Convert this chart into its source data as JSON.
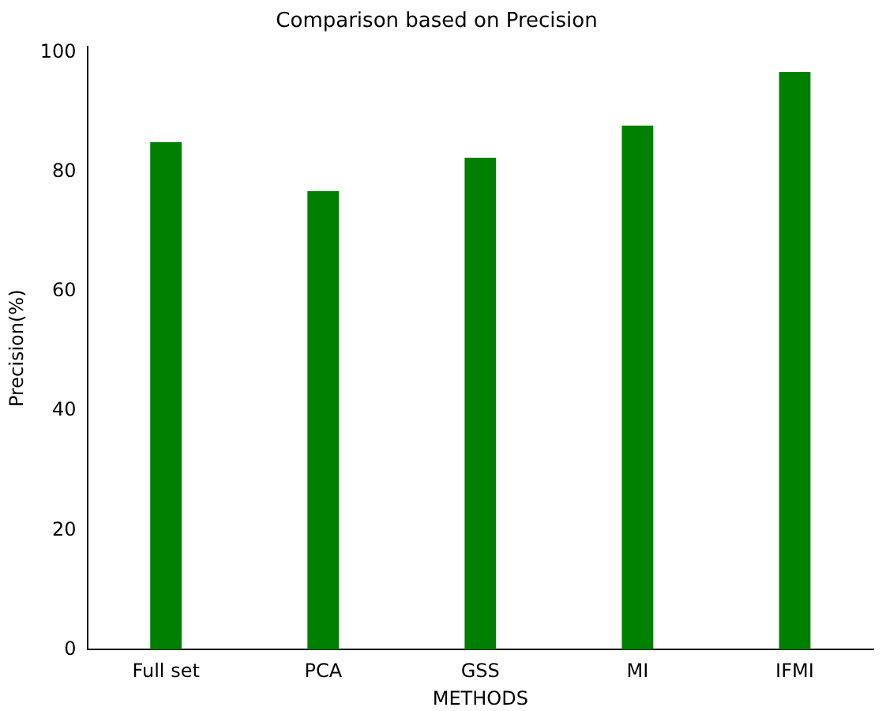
{
  "chart_data": {
    "type": "bar",
    "title": "Comparison based on Precision",
    "xlabel": "METHODS",
    "ylabel": "Precision(%)",
    "categories": [
      "Full set",
      "PCA",
      "GSS",
      "MI",
      "IFMI"
    ],
    "values": [
      85,
      76.8,
      82.4,
      87.8,
      96.8
    ],
    "color": "#008000",
    "ylim": [
      0,
      101
    ],
    "yticks": [
      0,
      20,
      40,
      60,
      80,
      100
    ],
    "grid": false,
    "legend": false
  }
}
